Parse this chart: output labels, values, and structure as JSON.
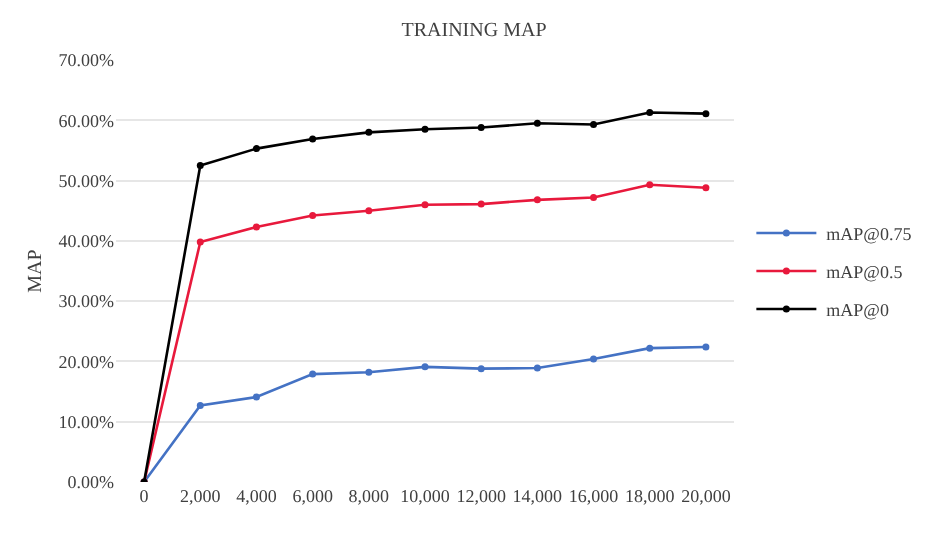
{
  "chart_data": {
    "type": "line",
    "title": "TRAINING MAP",
    "ylabel": "MAP",
    "categories": [
      "0",
      "2,000",
      "4,000",
      "6,000",
      "8,000",
      "10,000",
      "12,000",
      "14,000",
      "16,000",
      "18,000",
      "20,000"
    ],
    "series": [
      {
        "name": "mAP@0.75",
        "color": "#4472c4",
        "values": [
          0,
          12.7,
          14.1,
          17.9,
          18.2,
          19.1,
          18.8,
          18.9,
          20.4,
          22.2,
          22.4
        ]
      },
      {
        "name": "mAP@0.5",
        "color": "#e8193c",
        "values": [
          0,
          39.8,
          42.3,
          44.2,
          45.0,
          46.0,
          46.1,
          46.8,
          47.2,
          49.3,
          48.8
        ]
      },
      {
        "name": "mAP@0",
        "color": "#000000",
        "values": [
          0,
          52.5,
          55.3,
          56.9,
          58.0,
          58.5,
          58.8,
          59.5,
          59.3,
          61.3,
          61.1
        ]
      }
    ],
    "ylim": [
      0,
      70
    ],
    "yticks": [
      {
        "value": 0,
        "label": "0.00%"
      },
      {
        "value": 10,
        "label": "10.00%"
      },
      {
        "value": 20,
        "label": "20.00%"
      },
      {
        "value": 30,
        "label": "30.00%"
      },
      {
        "value": 40,
        "label": "40.00%"
      },
      {
        "value": 50,
        "label": "50.00%"
      },
      {
        "value": 60,
        "label": "60.00%"
      },
      {
        "value": 70,
        "label": "70.00%"
      }
    ],
    "grid": "y",
    "legend": "right",
    "marker": "circle",
    "line_style": "solid"
  }
}
